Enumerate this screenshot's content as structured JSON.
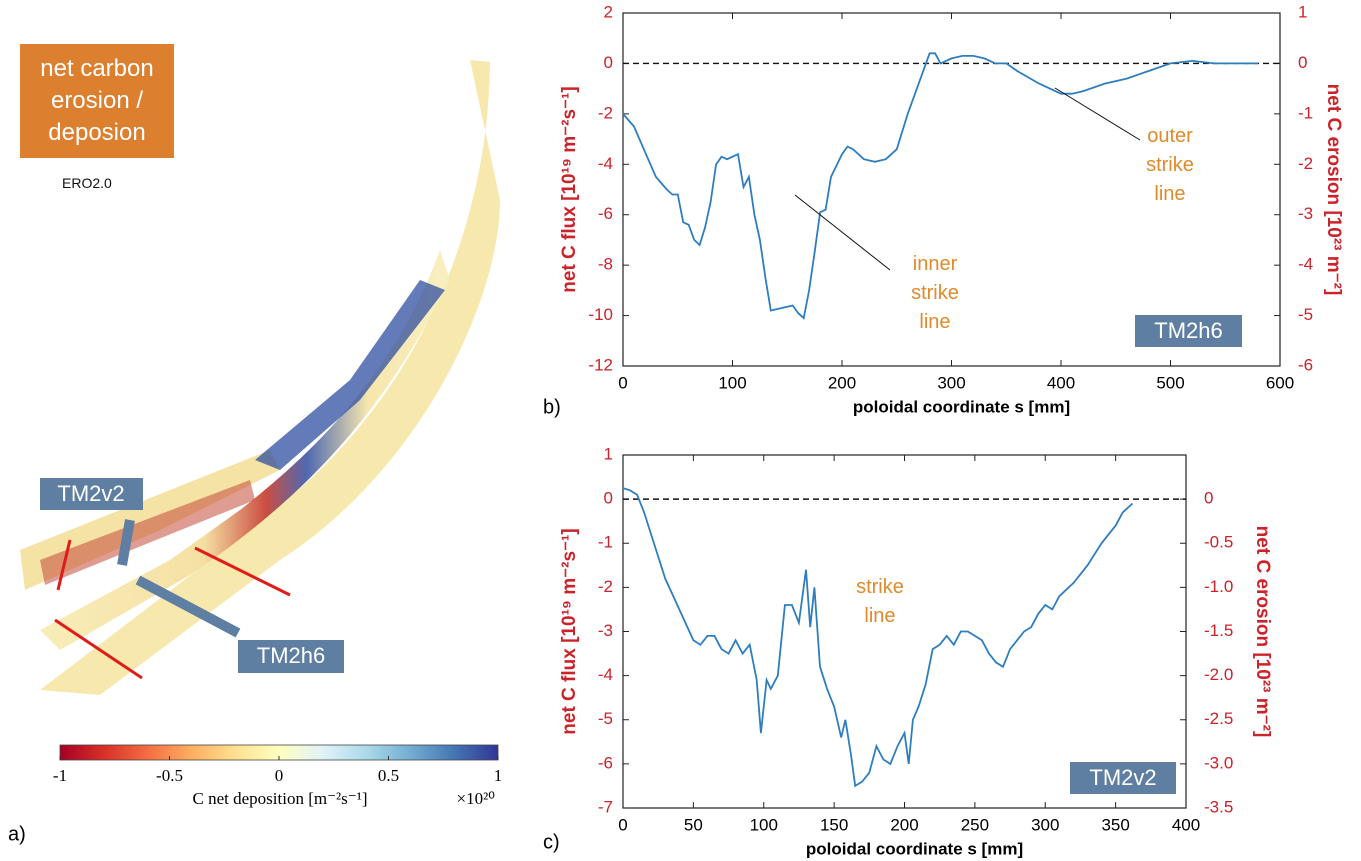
{
  "chart_data": [
    {
      "type": "colorbar",
      "title": "net carbon erosion / deposion",
      "note": "ERO2.0",
      "labels": [
        "TM2v2",
        "TM2h6"
      ],
      "panel_label": "a)",
      "xlim": [
        -1,
        1
      ],
      "xticks": [
        -1,
        -0.5,
        0,
        0.5,
        1
      ],
      "xlabel": "C net deposition [m⁻²s⁻¹]",
      "multiplier": "×10²⁰",
      "colors": [
        "#a50026",
        "#d73027",
        "#f46d43",
        "#fdae61",
        "#fee090",
        "#ffffbf",
        "#e0f3f8",
        "#abd9e9",
        "#74add1",
        "#4575b4",
        "#313695"
      ]
    },
    {
      "type": "line",
      "panel_label": "b)",
      "xlabel": "poloidal coordinate s [mm]",
      "ylabel": "net C flux [10¹⁹ m⁻²s⁻¹]",
      "y2label": "net C erosion [10²³ m⁻²]",
      "tag": "TM2h6",
      "annotations": [
        "inner strike line",
        "outer strike line"
      ],
      "hline": 0,
      "xlim": [
        0,
        600
      ],
      "xticks": [
        0,
        100,
        200,
        300,
        400,
        500,
        600
      ],
      "ylim": [
        -12,
        2
      ],
      "yticks": [
        -12,
        -10,
        -8,
        -6,
        -4,
        -2,
        0,
        2
      ],
      "y2lim": [
        -6,
        1
      ],
      "y2ticks": [
        -6,
        -5,
        -4,
        -3,
        -2,
        -1,
        0,
        1
      ],
      "x": [
        0,
        10,
        20,
        30,
        40,
        45,
        50,
        55,
        60,
        65,
        70,
        75,
        80,
        85,
        90,
        95,
        100,
        105,
        110,
        115,
        120,
        125,
        130,
        135,
        145,
        155,
        160,
        165,
        170,
        175,
        180,
        185,
        190,
        200,
        205,
        210,
        220,
        230,
        240,
        250,
        260,
        270,
        280,
        285,
        290,
        300,
        310,
        320,
        330,
        340,
        350,
        360,
        380,
        400,
        410,
        420,
        440,
        460,
        480,
        500,
        520,
        540,
        560,
        580
      ],
      "series": [
        {
          "color": "#2e7ebf",
          "values": [
            -2,
            -2.5,
            -3.5,
            -4.5,
            -5,
            -5.2,
            -5.2,
            -6.3,
            -6.4,
            -7,
            -7.2,
            -6.5,
            -5.5,
            -4,
            -3.7,
            -3.8,
            -3.7,
            -3.6,
            -4.9,
            -4.5,
            -6,
            -7,
            -8.5,
            -9.8,
            -9.7,
            -9.6,
            -9.9,
            -10.1,
            -9,
            -7.5,
            -5.9,
            -5.8,
            -4.5,
            -3.6,
            -3.3,
            -3.4,
            -3.8,
            -3.9,
            -3.8,
            -3.4,
            -2,
            -0.8,
            0.4,
            0.4,
            0,
            0.2,
            0.3,
            0.3,
            0.2,
            0,
            0,
            -0.3,
            -0.8,
            -1.2,
            -1.2,
            -1.1,
            -0.8,
            -0.6,
            -0.3,
            0,
            0.1,
            0,
            0,
            0
          ]
        }
      ]
    },
    {
      "type": "line",
      "panel_label": "c)",
      "xlabel": "poloidal coordinate s [mm]",
      "ylabel": "net C flux [10¹⁹ m⁻²s⁻¹]",
      "y2label": "net C erosion [10²³ m⁻²]",
      "tag": "TM2v2",
      "annotations": [
        "strike line"
      ],
      "hline": 0,
      "xlim": [
        0,
        400
      ],
      "xticks": [
        0,
        50,
        100,
        150,
        200,
        250,
        300,
        350,
        400
      ],
      "ylim": [
        -7,
        1
      ],
      "yticks": [
        -7,
        -6,
        -5,
        -4,
        -3,
        -2,
        -1,
        0,
        1
      ],
      "y2lim": [
        -3.5,
        0.5
      ],
      "y2ticks": [
        {
          "value": -3.5,
          "label": "-3.5"
        },
        {
          "value": -3,
          "label": "-3.0"
        },
        {
          "value": -2.5,
          "label": "-2.5"
        },
        {
          "value": -2,
          "label": "-2.0"
        },
        {
          "value": -1.5,
          "label": "-1.5"
        },
        {
          "value": -1,
          "label": "-1.0"
        },
        {
          "value": -0.5,
          "label": "-0.5"
        },
        0
      ],
      "x": [
        0,
        5,
        10,
        15,
        20,
        30,
        40,
        50,
        55,
        60,
        65,
        70,
        75,
        80,
        85,
        90,
        95,
        98,
        102,
        105,
        110,
        115,
        120,
        125,
        130,
        133,
        136,
        140,
        145,
        150,
        155,
        158,
        162,
        165,
        170,
        175,
        180,
        185,
        190,
        195,
        200,
        203,
        206,
        210,
        215,
        220,
        225,
        230,
        235,
        240,
        245,
        250,
        255,
        260,
        265,
        270,
        275,
        280,
        285,
        290,
        295,
        300,
        305,
        310,
        320,
        330,
        340,
        350,
        355,
        362
      ],
      "series": [
        {
          "color": "#2e7ebf",
          "values": [
            0.25,
            0.2,
            0.1,
            -0.3,
            -0.8,
            -1.8,
            -2.5,
            -3.2,
            -3.3,
            -3.1,
            -3.1,
            -3.4,
            -3.5,
            -3.2,
            -3.5,
            -3.3,
            -4.1,
            -5.3,
            -4.1,
            -4.3,
            -4,
            -2.4,
            -2.4,
            -2.8,
            -1.6,
            -2.9,
            -2,
            -3.8,
            -4.3,
            -4.7,
            -5.4,
            -5,
            -5.8,
            -6.5,
            -6.4,
            -6.2,
            -5.6,
            -5.9,
            -6,
            -5.6,
            -5.3,
            -6,
            -5,
            -4.7,
            -4.2,
            -3.4,
            -3.3,
            -3.1,
            -3.3,
            -3,
            -3,
            -3.1,
            -3.2,
            -3.5,
            -3.7,
            -3.8,
            -3.4,
            -3.2,
            -3,
            -2.9,
            -2.6,
            -2.4,
            -2.5,
            -2.2,
            -1.9,
            -1.5,
            -1,
            -0.6,
            -0.3,
            -0.1
          ]
        }
      ]
    }
  ]
}
